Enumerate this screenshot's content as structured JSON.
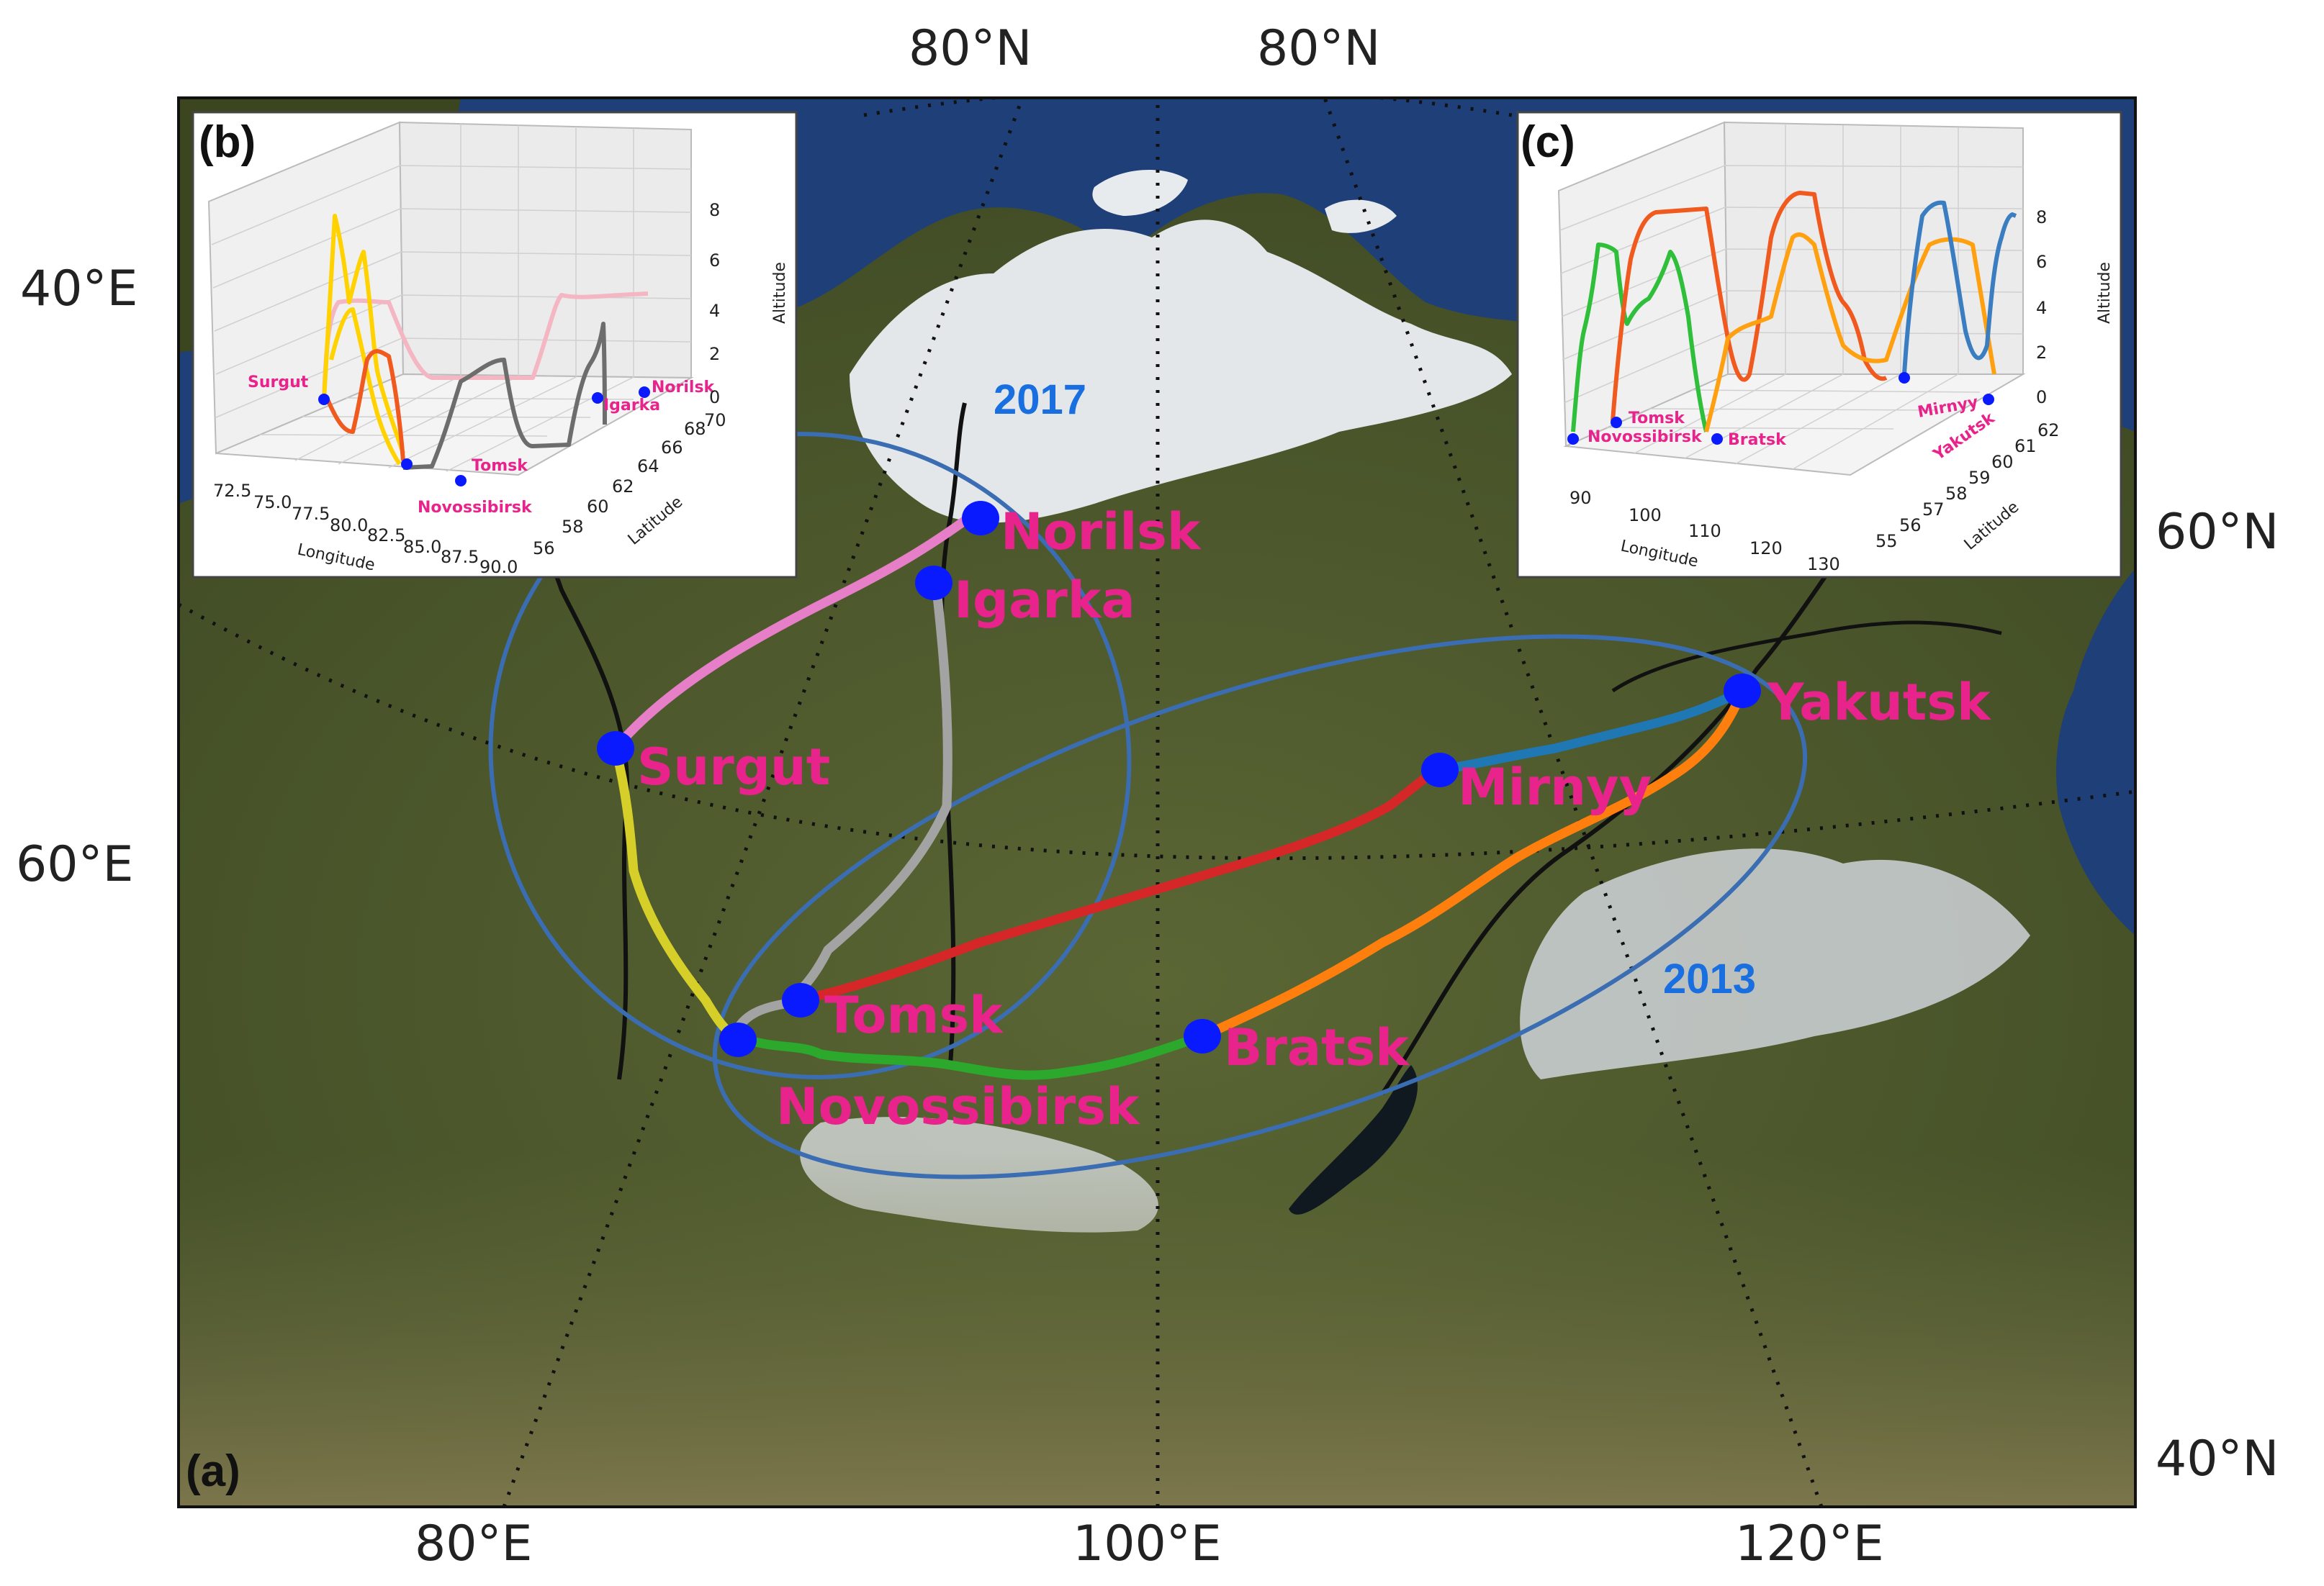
{
  "graticule_labels": {
    "top": [
      "80°N",
      "80°N"
    ],
    "left": [
      "40°E",
      "60°E"
    ],
    "right": [
      "60°N",
      "40°N"
    ],
    "bottom": [
      "80°E",
      "100°E",
      "120°E"
    ]
  },
  "panels": {
    "main": "(a)",
    "inset_left": "(b)",
    "inset_right": "(c)"
  },
  "campaigns": [
    {
      "year": "2017",
      "cities": [
        "Surgut",
        "Norilsk",
        "Igarka",
        "Tomsk",
        "Novossibirsk"
      ]
    },
    {
      "year": "2013",
      "cities": [
        "Novossibirsk",
        "Tomsk",
        "Bratsk",
        "Mirnyy",
        "Yakutsk"
      ]
    }
  ],
  "cities": [
    {
      "name": "Norilsk"
    },
    {
      "name": "Igarka"
    },
    {
      "name": "Surgut"
    },
    {
      "name": "Mirnyy"
    },
    {
      "name": "Yakutsk"
    },
    {
      "name": "Tomsk"
    },
    {
      "name": "Bratsk"
    },
    {
      "name": "Novossibirsk"
    }
  ],
  "flight_legs": [
    {
      "from": "Surgut",
      "to": "Norilsk",
      "color": "#e77fc8"
    },
    {
      "from": "Igarka",
      "to": "Novossibirsk",
      "color": "#a3a3a3"
    },
    {
      "from": "Surgut",
      "to": "Novossibirsk",
      "color": "#d6cf2a"
    },
    {
      "from": "Novossibirsk",
      "to": "Bratsk",
      "color": "#2ca82c"
    },
    {
      "from": "Tomsk",
      "to": "Mirnyy",
      "color": "#d62728"
    },
    {
      "from": "Mirnyy",
      "to": "Yakutsk",
      "color": "#1f77b4"
    },
    {
      "from": "Bratsk",
      "to": "Yakutsk",
      "color": "#ff7f0e"
    }
  ],
  "inset_b": {
    "x_axis_label": "Longitude",
    "y_axis_label": "Latitude",
    "z_axis_label": "Altitude",
    "x_ticks": [
      "72.5",
      "75.0",
      "77.5",
      "80.0",
      "82.5",
      "85.0",
      "87.5",
      "90.0"
    ],
    "y_ticks": [
      "56",
      "58",
      "60",
      "62",
      "64",
      "66",
      "68",
      "70"
    ],
    "z_ticks": [
      "0",
      "2",
      "4",
      "6",
      "8"
    ],
    "city_labels": [
      "Surgut",
      "Tomsk",
      "Novossibirsk",
      "Igarka",
      "Norilsk"
    ]
  },
  "inset_c": {
    "x_axis_label": "Longitude",
    "y_axis_label": "Latitude",
    "z_axis_label": "Altitude",
    "x_ticks": [
      "90",
      "100",
      "110",
      "120",
      "130"
    ],
    "y_ticks": [
      "55",
      "56",
      "57",
      "58",
      "59",
      "60",
      "61",
      "62"
    ],
    "z_ticks": [
      "0",
      "2",
      "4",
      "6",
      "8"
    ],
    "city_labels": [
      "Tomsk",
      "Novossibirsk",
      "Bratsk",
      "Mirnyy",
      "Yakutsk"
    ]
  },
  "colors": {
    "city_marker": "#0a1aff",
    "city_text": "#e8248c",
    "ellipse": "#3b6db3",
    "year_text": "#1a6fe0",
    "ocean": "#1e3f78",
    "snow": "#e8ebee",
    "land": "#4e5a2e"
  }
}
